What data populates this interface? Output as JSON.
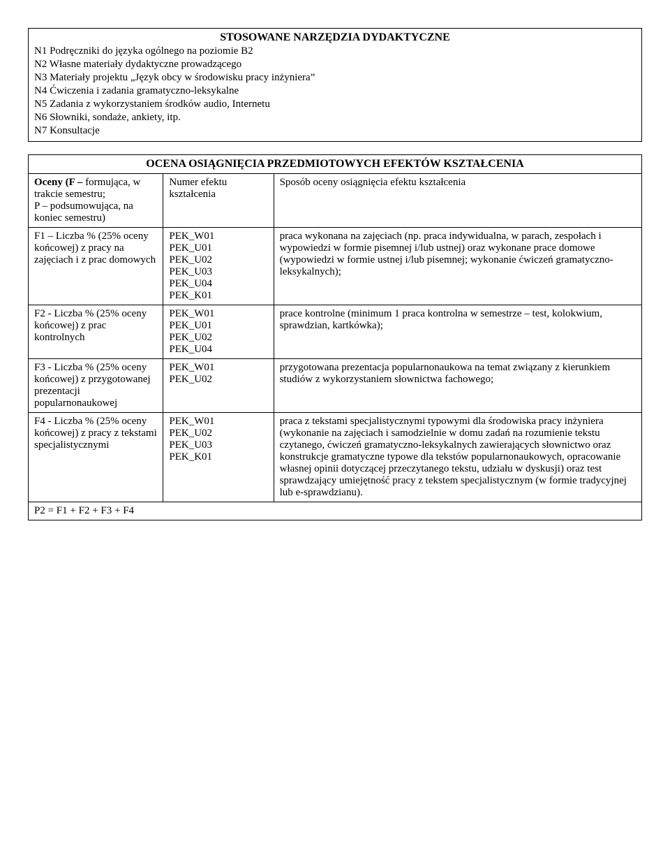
{
  "tools": {
    "heading": "STOSOWANE NARZĘDZIA DYDAKTYCZNE",
    "items": [
      "N1  Podręczniki do języka ogólnego  na poziomie B2",
      "N2  Własne materiały dydaktyczne prowadzącego",
      "N3  Materiały projektu „Język obcy w środowisku pracy inżyniera”",
      "N4  Ćwiczenia i zadania gramatyczno-leksykalne",
      "N5  Zadania z wykorzystaniem środków audio, Internetu",
      "N6  Słowniki, sondaże, ankiety, itp.",
      "N7  Konsultacje"
    ]
  },
  "assessment": {
    "heading": "OCENA OSIĄGNIĘCIA PRZEDMIOTOWYCH EFEKTÓW KSZTAŁCENIA",
    "header_row": {
      "col1_line1": "Oceny (F –",
      "col1_rest": "formująca, w trakcie semestru;\nP – podsumowująca, na koniec semestru)",
      "col2": "Numer efektu kształcenia",
      "col3": "Sposób oceny osiągnięcia efektu kształcenia"
    },
    "rows": [
      {
        "col1": "F1 – Liczba % (25% oceny końcowej) z pracy na zajęciach i z prac domowych",
        "col2": "PEK_W01\nPEK_U01\nPEK_U02\nPEK_U03\nPEK_U04\nPEK_K01",
        "col3": "praca wykonana na zajęciach (np. praca indywidualna, w parach, zespołach i wypowiedzi w formie pisemnej i/lub ustnej) oraz wykonane prace domowe (wypowiedzi w formie ustnej i/lub  pisemnej; wykonanie ćwiczeń gramatyczno-leksykalnych);"
      },
      {
        "col1": "F2 - Liczba % (25% oceny końcowej) z prac kontrolnych",
        "col2": "PEK_W01\nPEK_U01\nPEK_U02\nPEK_U04",
        "col3": "prace kontrolne (minimum 1 praca kontrolna w semestrze – test, kolokwium, sprawdzian, kartkówka);"
      },
      {
        "col1": "F3 - Liczba % (25% oceny końcowej) z przygotowanej prezentacji popularnonaukowej",
        "col2": "PEK_W01\nPEK_U02",
        "col3": "przygotowana prezentacja popularnonaukowa na temat związany z kierunkiem studiów z wykorzystaniem słownictwa fachowego;"
      },
      {
        "col1": "F4 - Liczba % (25% oceny końcowej) z pracy z tekstami specjalistycznymi",
        "col2": "PEK_W01\nPEK_U02\nPEK_U03\nPEK_K01",
        "col3": "praca z tekstami specjalistycznymi typowymi dla środowiska pracy inżyniera (wykonanie na zajęciach i samodzielnie w domu zadań na rozumienie tekstu czytanego, ćwiczeń gramatyczno-leksykalnych zawierających słownictwo oraz konstrukcje gramatyczne typowe dla tekstów  popularnonaukowych, opracowanie własnej opinii dotyczącej przeczytanego tekstu, udziału w dyskusji) oraz test sprawdzający umiejętność pracy z tekstem specjalistycznym (w formie tradycyjnej lub e-sprawdzianu)."
      }
    ],
    "footer": "P2 =  F1 + F2 + F3 + F4"
  }
}
